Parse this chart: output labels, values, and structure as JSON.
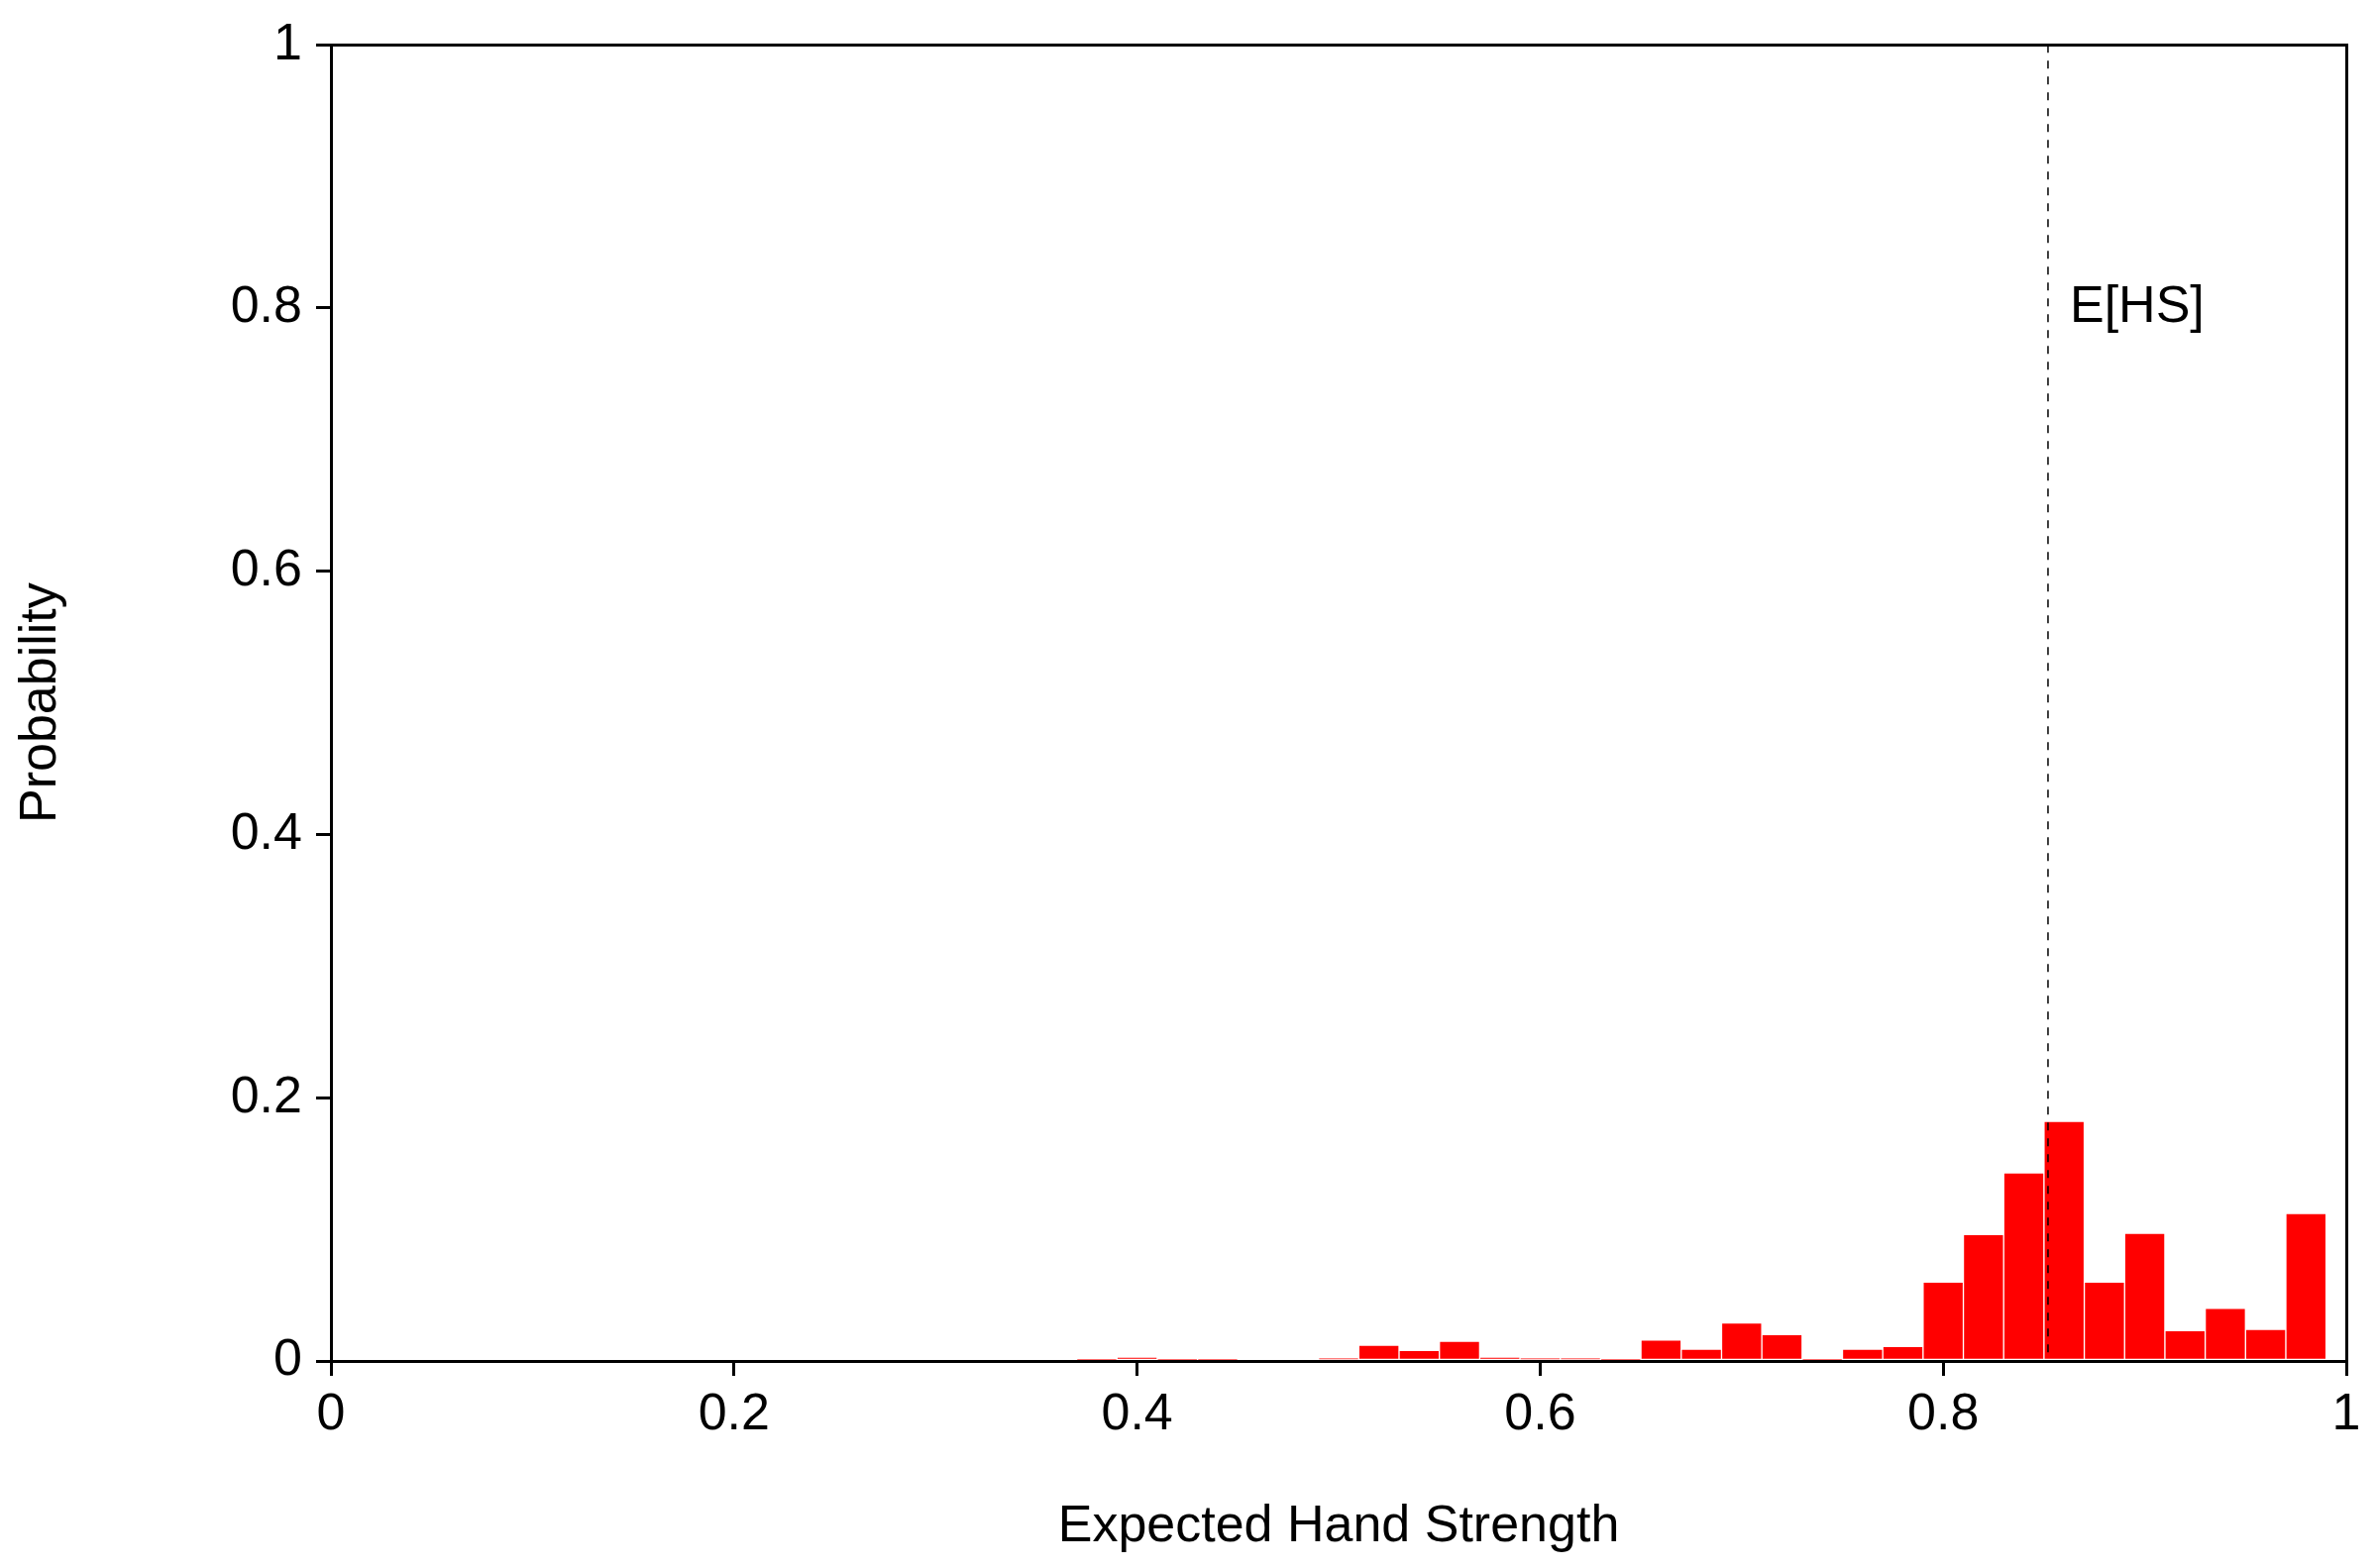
{
  "chart_data": {
    "type": "histogram",
    "xlabel": "Expected Hand Strength",
    "ylabel": "Probability",
    "bins": [
      0.37,
      0.39,
      0.41,
      0.43,
      0.45,
      0.47,
      0.49,
      0.51,
      0.53,
      0.55,
      0.57,
      0.59,
      0.61,
      0.63,
      0.65,
      0.67,
      0.69,
      0.71,
      0.73,
      0.75,
      0.77,
      0.79,
      0.81,
      0.83,
      0.85,
      0.87,
      0.89,
      0.91,
      0.93,
      0.95,
      0.97,
      0.99
    ],
    "values": [
      0.001,
      0.003,
      0.001,
      0.001,
      0,
      0,
      0.002,
      0.012,
      0.008,
      0.015,
      0.003,
      0.002,
      0.002,
      0.001,
      0.016,
      0.009,
      0.029,
      0.02,
      0.001,
      0.009,
      0.011,
      0.06,
      0.096,
      0.143,
      0.182,
      0.06,
      0.097,
      0.023,
      0.04,
      0.024,
      0.112
    ],
    "color": "#ff0000",
    "xlim": [
      0,
      1
    ],
    "xticks": [
      0,
      0.2,
      0.4,
      0.6,
      0.8,
      1
    ],
    "ylim": [
      0,
      1
    ],
    "yticks": [
      0,
      0.2,
      0.4,
      0.6,
      0.8,
      1
    ],
    "grid": false,
    "legend": false,
    "ref_lines": [
      {
        "axis": "x",
        "value": 0.852,
        "label": "E[HS]",
        "color": "#000000",
        "line_style": "dashed"
      }
    ]
  }
}
